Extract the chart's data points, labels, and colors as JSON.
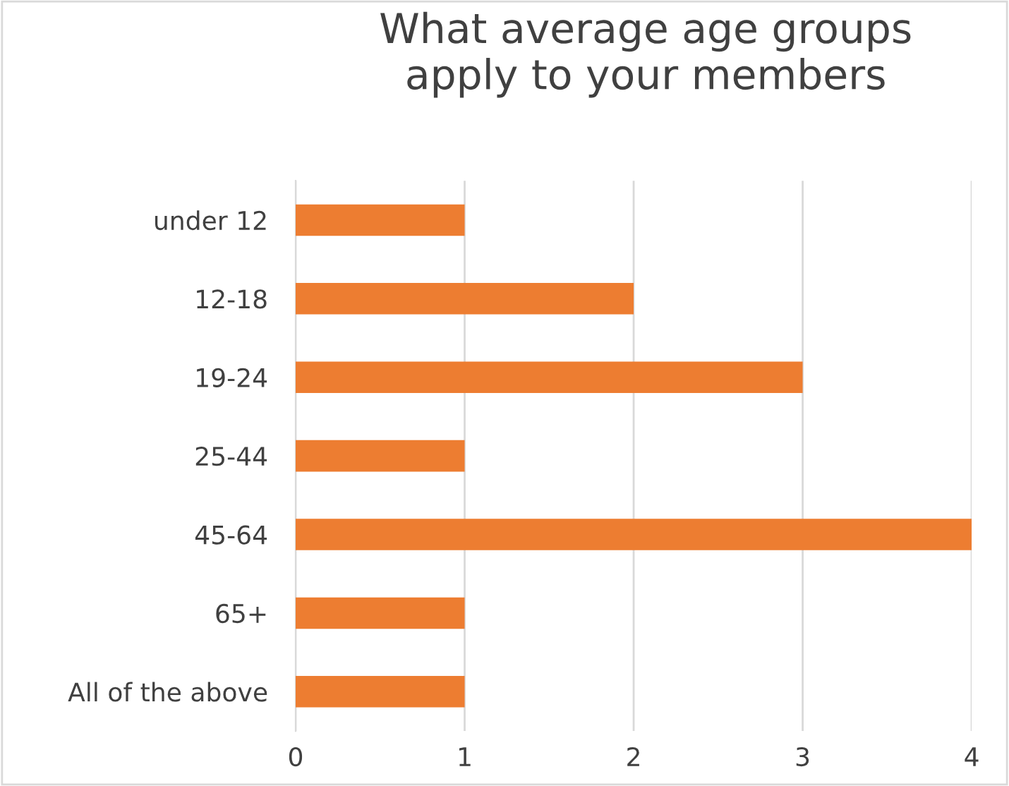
{
  "chart_data": {
    "type": "bar",
    "orientation": "horizontal",
    "title": "What average age groups\napply to your members",
    "categories": [
      "under 12",
      "12-18",
      "19-24",
      "25-44",
      "45-64",
      "65+",
      "All of the above"
    ],
    "values": [
      1,
      2,
      3,
      1,
      4,
      1,
      1
    ],
    "color": "#ed7d31",
    "xlim": [
      0,
      4
    ],
    "xticks": [
      0,
      1,
      2,
      3,
      4
    ],
    "grid": "x",
    "legend": false
  }
}
